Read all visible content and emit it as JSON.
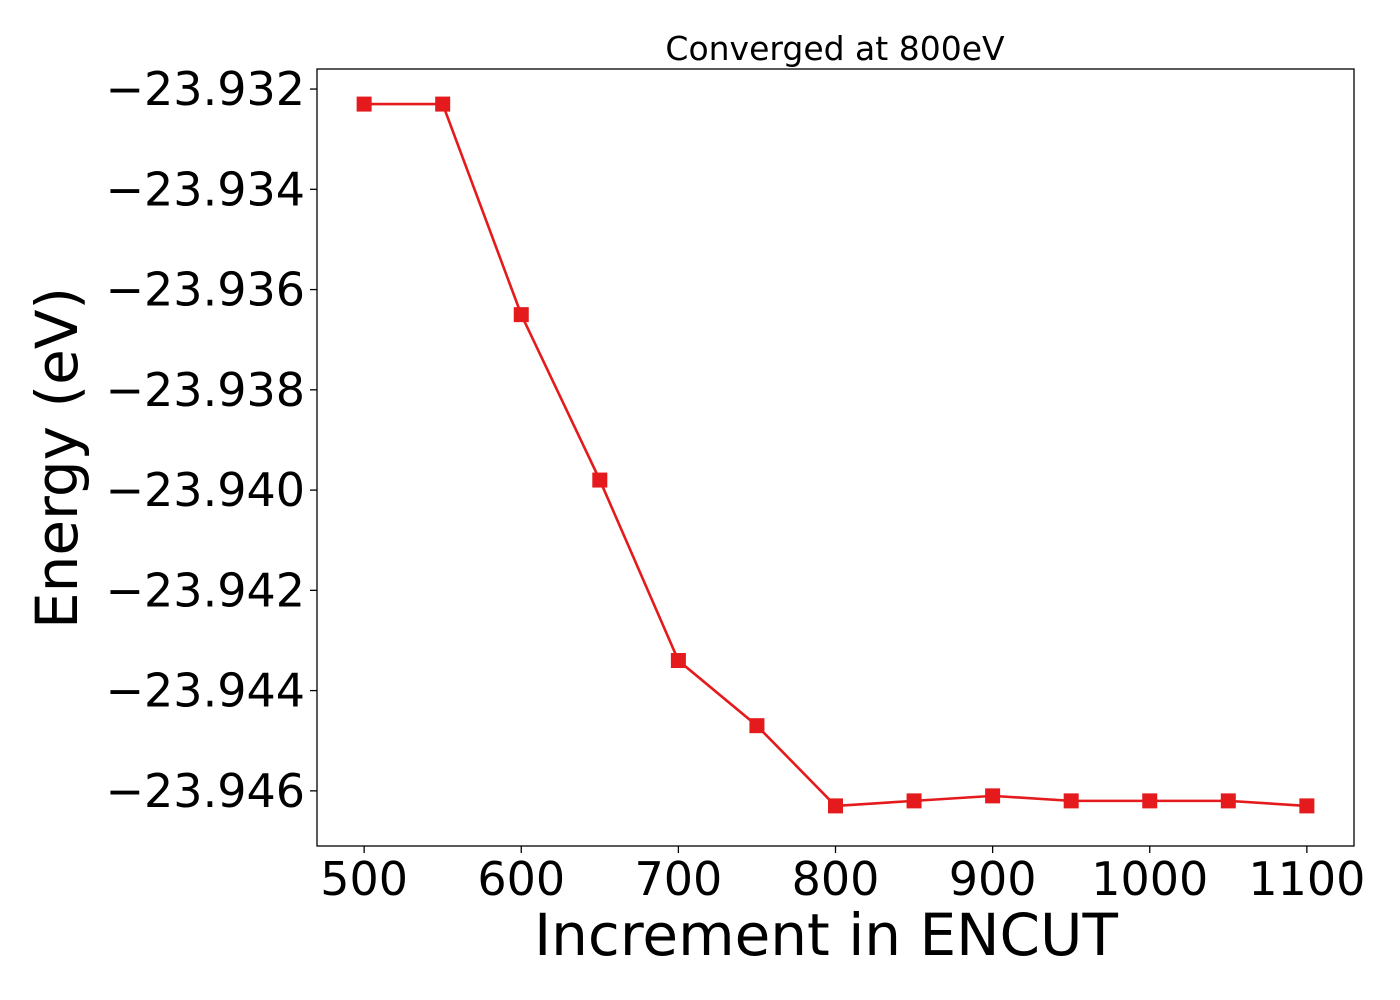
{
  "chart_data": {
    "type": "line",
    "title": "Converged at 800eV",
    "xlabel": "Increment in ENCUT",
    "ylabel": "Energy (eV)",
    "x": [
      500,
      550,
      600,
      650,
      700,
      750,
      800,
      850,
      900,
      950,
      1000,
      1050,
      1100
    ],
    "series": [
      {
        "values": [
          -23.9323,
          -23.9323,
          -23.9365,
          -23.9398,
          -23.9434,
          -23.9447,
          -23.9463,
          -23.9462,
          -23.9461,
          -23.9462,
          -23.9462,
          -23.9462,
          -23.9463
        ],
        "color": "#e41a1c",
        "marker": "square"
      }
    ],
    "xlim": [
      470,
      1130
    ],
    "ylim": [
      -23.9471,
      -23.9316
    ],
    "xticks": [
      500,
      600,
      700,
      800,
      900,
      1000,
      1100
    ],
    "yticks": [
      -23.932,
      -23.934,
      -23.936,
      -23.938,
      -23.94,
      -23.942,
      -23.944,
      -23.946
    ],
    "ytick_labels": [
      "−23.932",
      "−23.934",
      "−23.936",
      "−23.938",
      "−23.940",
      "−23.942",
      "−23.944",
      "−23.946"
    ],
    "grid": false,
    "legend": "none"
  }
}
